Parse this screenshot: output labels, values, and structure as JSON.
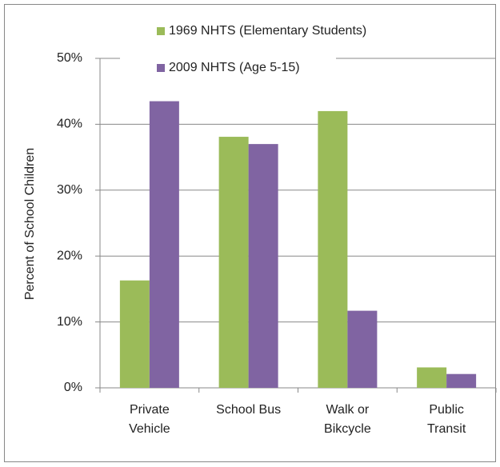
{
  "chart_data": {
    "type": "bar",
    "y_label": "Percent of School Children",
    "categories": [
      "Private Vehicle",
      "School Bus",
      "Walk or Bikcycle",
      "Public Transit"
    ],
    "series": [
      {
        "name": "1969 NHTS (Elementary Students)",
        "color": "#9bbb59",
        "values": [
          16.3,
          38.1,
          42.0,
          3.1
        ]
      },
      {
        "name": "2009 NHTS (Age 5-15)",
        "color": "#8064a2",
        "values": [
          43.5,
          37.0,
          11.7,
          2.1
        ]
      }
    ],
    "ylim": [
      0,
      50
    ],
    "yticks": [
      {
        "value": 0,
        "label": "0%"
      },
      {
        "value": 10,
        "label": "10%"
      },
      {
        "value": 20,
        "label": "20%"
      },
      {
        "value": 30,
        "label": "30%"
      },
      {
        "value": 40,
        "label": "40%"
      },
      {
        "value": 50,
        "label": "50%"
      }
    ],
    "grid": true,
    "legend": "top"
  }
}
